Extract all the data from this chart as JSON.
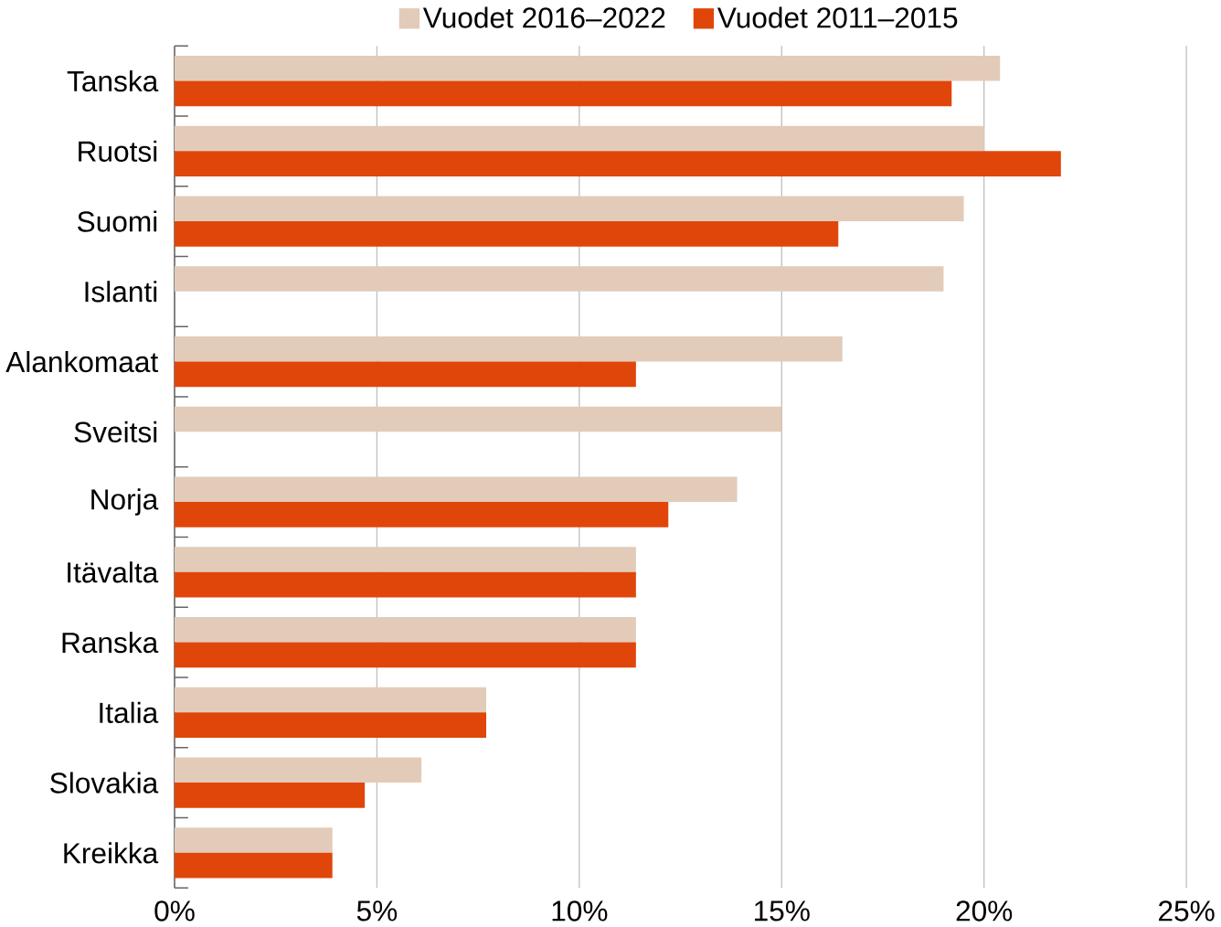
{
  "chart_data": {
    "type": "bar",
    "orientation": "horizontal",
    "categories": [
      "Tanska",
      "Ruotsi",
      "Suomi",
      "Islanti",
      "Alankomaat",
      "Sveitsi",
      "Norja",
      "Itävalta",
      "Ranska",
      "Italia",
      "Slovakia",
      "Kreikka"
    ],
    "series": [
      {
        "name": "Vuodet 2016–2022",
        "color": "#e2cbb9",
        "values": [
          20.4,
          20.0,
          19.5,
          19.0,
          16.5,
          15.0,
          13.9,
          11.4,
          11.4,
          7.7,
          6.1,
          3.9
        ]
      },
      {
        "name": "Vuodet 2011–2015",
        "color": "#e0460a",
        "values": [
          19.2,
          21.9,
          16.4,
          null,
          11.4,
          null,
          12.2,
          11.4,
          11.4,
          7.7,
          4.7,
          3.9
        ]
      }
    ],
    "xlim": [
      0,
      25
    ],
    "xticks": [
      {
        "value": 0,
        "label": "0%"
      },
      {
        "value": 5,
        "label": "5%"
      },
      {
        "value": 10,
        "label": "10%"
      },
      {
        "value": 15,
        "label": "15%"
      },
      {
        "value": 20,
        "label": "20%"
      },
      {
        "value": 25,
        "label": "25%"
      }
    ],
    "grid": "x",
    "legend": "top"
  }
}
